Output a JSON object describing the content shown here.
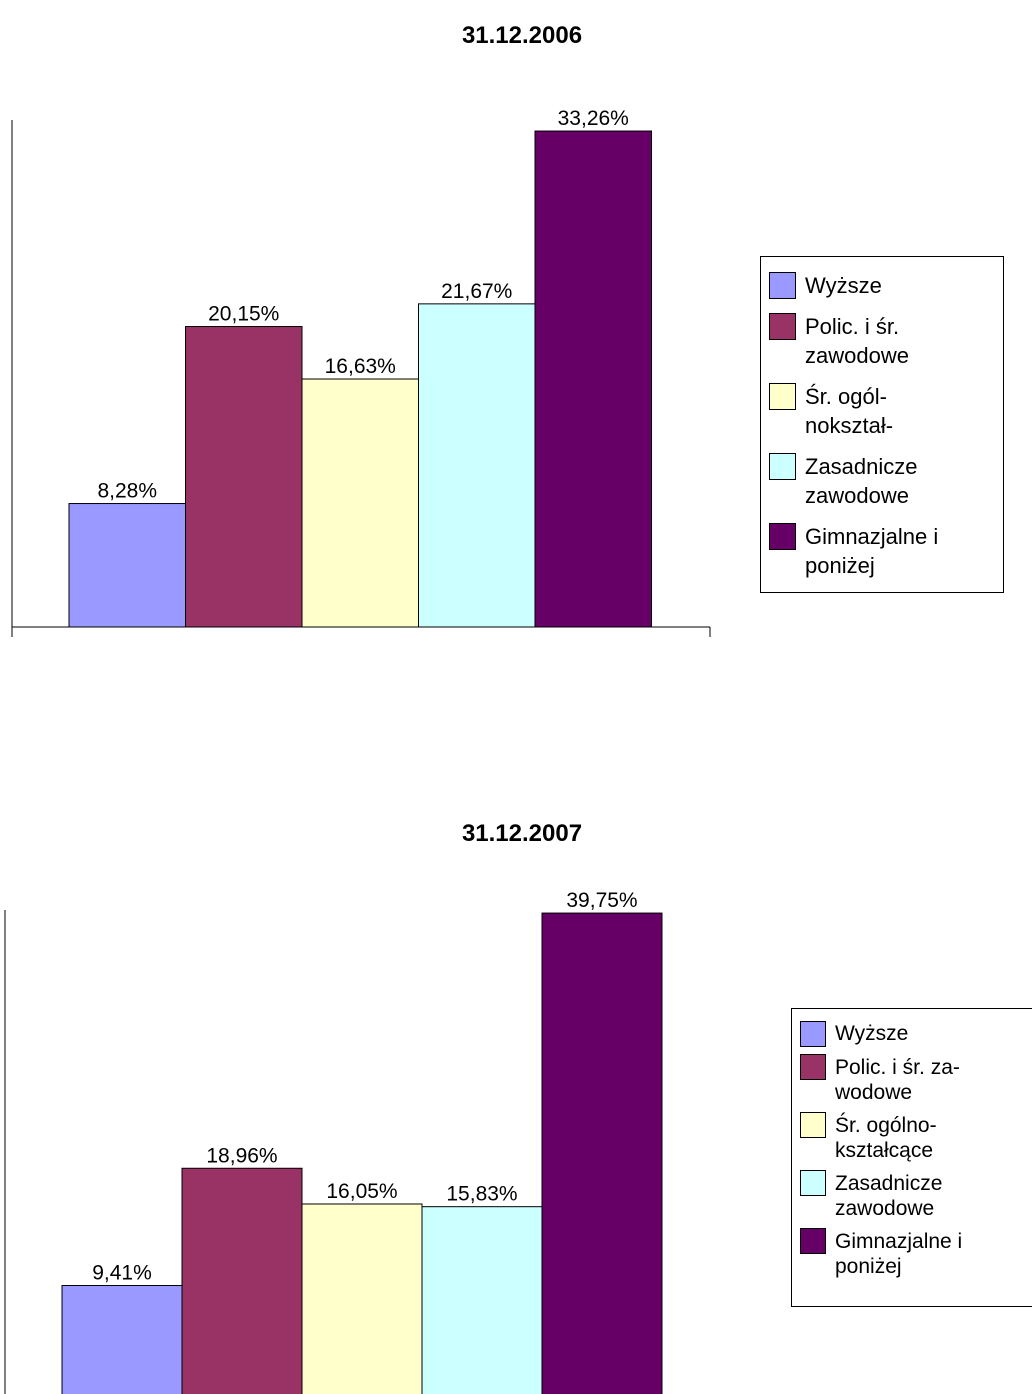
{
  "chart_data": [
    {
      "type": "bar",
      "title": "31.12.2006",
      "ylim": [
        0,
        34
      ],
      "series": [
        {
          "name": "Wyższe",
          "color": "#9999ff",
          "values": [
            8.28
          ],
          "value_labels": [
            "8,28%"
          ]
        },
        {
          "name": "Polic. i śr.\nzawodowe",
          "color": "#993366",
          "values": [
            20.15
          ],
          "value_labels": [
            "20,15%"
          ]
        },
        {
          "name": "Śr. ogól-\nnokształ-",
          "color": "#ffffcc",
          "values": [
            16.63
          ],
          "value_labels": [
            "16,63%"
          ]
        },
        {
          "name": "Zasadnicze\nzawodowe",
          "color": "#ccffff",
          "values": [
            21.67
          ],
          "value_labels": [
            "21,67%"
          ]
        },
        {
          "name": "Gimnazjalne i\nponiżej",
          "color": "#660066",
          "values": [
            33.26
          ],
          "value_labels": [
            "33,26%"
          ]
        }
      ]
    },
    {
      "type": "bar",
      "title": "31.12.2007",
      "ylim": [
        0,
        40
      ],
      "series": [
        {
          "name": "Wyższe",
          "color": "#9999ff",
          "values": [
            9.41
          ],
          "value_labels": [
            "9,41%"
          ]
        },
        {
          "name": "Polic. i śr. za-\nwodowe",
          "color": "#993366",
          "values": [
            18.96
          ],
          "value_labels": [
            "18,96%"
          ]
        },
        {
          "name": "Śr. ogólno-\nkształcące",
          "color": "#ffffcc",
          "values": [
            16.05
          ],
          "value_labels": [
            "16,05%"
          ]
        },
        {
          "name": "Zasadnicze\nzawodowe",
          "color": "#ccffff",
          "values": [
            15.83
          ],
          "value_labels": [
            "15,83%"
          ]
        },
        {
          "name": "Gimnazjalne i\nponiżej",
          "color": "#660066",
          "values": [
            39.75
          ],
          "value_labels": [
            "39,75%"
          ]
        }
      ]
    }
  ]
}
